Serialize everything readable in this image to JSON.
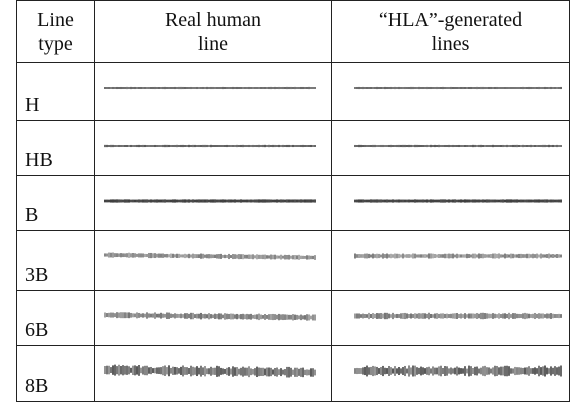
{
  "table": {
    "header": [
      [
        "Line",
        "type"
      ],
      [
        "Real human",
        "line"
      ],
      [
        "“HLA”-generated",
        "lines"
      ]
    ],
    "rows": [
      [
        "H"
      ],
      [
        "HB"
      ],
      [
        "B"
      ],
      [
        "3B"
      ],
      [
        "6B"
      ],
      [
        "8B"
      ]
    ]
  }
}
